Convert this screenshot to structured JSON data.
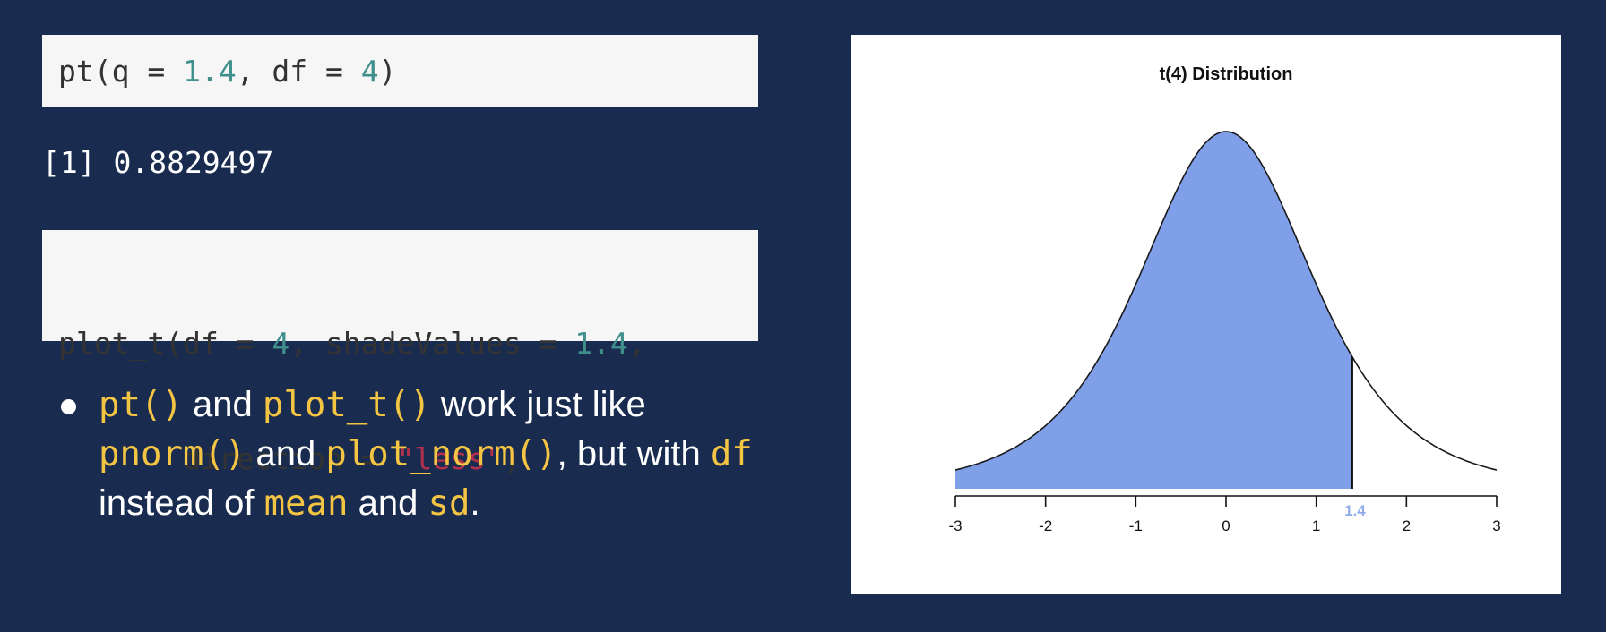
{
  "code1": {
    "tokens": [
      {
        "t": "pt(q = ",
        "c": "plain"
      },
      {
        "t": "1.4",
        "c": "num"
      },
      {
        "t": ", df = ",
        "c": "plain"
      },
      {
        "t": "4",
        "c": "num"
      },
      {
        "t": ")",
        "c": "plain"
      }
    ]
  },
  "output": "[1] 0.8829497",
  "code2": {
    "line1": [
      {
        "t": "plot_t(df = ",
        "c": "plain"
      },
      {
        "t": "4",
        "c": "num"
      },
      {
        "t": ", shadeValues = ",
        "c": "plain"
      },
      {
        "t": "1.4",
        "c": "num"
      },
      {
        "t": ",",
        "c": "plain"
      }
    ],
    "line2": [
      {
        "t": "       direction = ",
        "c": "plain"
      },
      {
        "t": "\"less\"",
        "c": "str"
      },
      {
        "t": ")",
        "c": "plain"
      }
    ]
  },
  "bullet": {
    "parts": [
      {
        "t": "pt()",
        "code": true
      },
      {
        "t": " and ",
        "code": false
      },
      {
        "t": "plot_t()",
        "code": true
      },
      {
        "t": " work just like ",
        "code": false
      },
      {
        "t": "pnorm()",
        "code": true
      },
      {
        "t": " and ",
        "code": false
      },
      {
        "t": "plot_norm()",
        "code": true
      },
      {
        "t": ", but with ",
        "code": false
      },
      {
        "t": "df",
        "code": true
      },
      {
        "t": " instead of ",
        "code": false
      },
      {
        "t": "mean",
        "code": true
      },
      {
        "t": " and ",
        "code": false
      },
      {
        "t": "sd",
        "code": true
      },
      {
        "t": ".",
        "code": false
      }
    ]
  },
  "chart_data": {
    "type": "area",
    "title": "t(4) Distribution",
    "df": 4,
    "xlim": [
      -3,
      3
    ],
    "x_ticks": [
      "-3",
      "-2",
      "-1",
      "0",
      "1",
      "2",
      "3"
    ],
    "shade_value": 1.4,
    "shade_label": "1.4",
    "direction": "less",
    "shade_color": "#809fe9",
    "shade_label_color": "#92acec"
  }
}
